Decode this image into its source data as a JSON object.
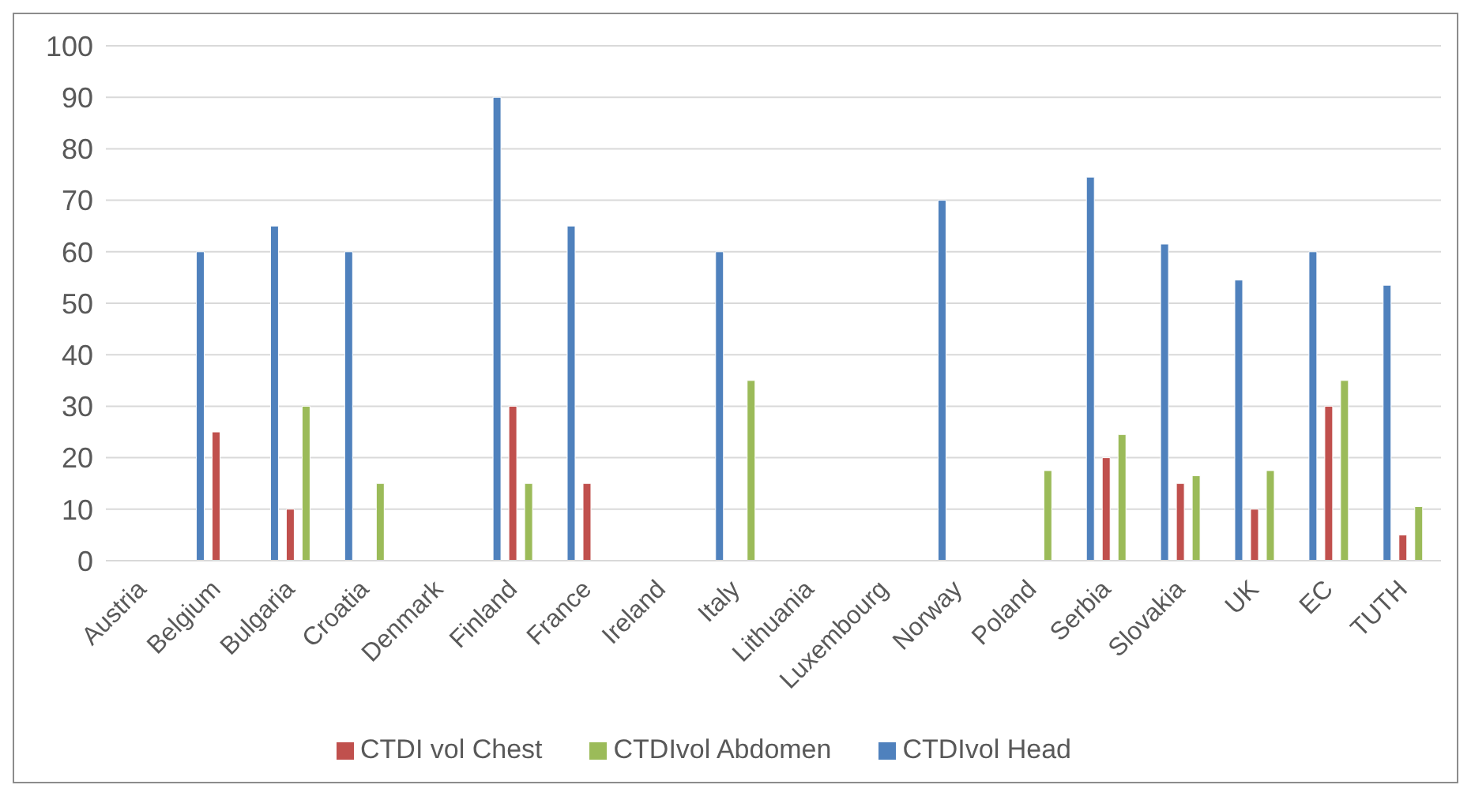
{
  "chart_data": {
    "type": "bar",
    "categories": [
      "Austria",
      "Belgium",
      "Bulgaria",
      "Croatia",
      "Denmark",
      "Finland",
      "France",
      "Ireland",
      "Italy",
      "Lithuania",
      "Luxembourg",
      "Norway",
      "Poland",
      "Serbia",
      "Slovakia",
      "UK",
      "EC",
      "TUTH"
    ],
    "series": [
      {
        "name": "CTDIvol Head",
        "color": "#4f81bd",
        "values": [
          null,
          60,
          65,
          60,
          null,
          90,
          65,
          null,
          60,
          null,
          null,
          70,
          null,
          74.5,
          61.5,
          54.5,
          60,
          53.5
        ]
      },
      {
        "name": "CTDI vol Chest",
        "color": "#c0504d",
        "values": [
          null,
          25,
          10,
          null,
          null,
          30,
          15,
          null,
          null,
          null,
          null,
          null,
          null,
          20,
          15,
          10,
          30,
          5
        ]
      },
      {
        "name": "CTDIvol Abdomen",
        "color": "#9bbb59",
        "values": [
          null,
          null,
          30,
          15,
          null,
          15,
          null,
          null,
          35,
          null,
          null,
          null,
          17.5,
          24.5,
          16.5,
          17.5,
          35,
          10.5
        ]
      }
    ],
    "ylim": [
      0,
      100
    ],
    "yticks": [
      0,
      10,
      20,
      30,
      40,
      50,
      60,
      70,
      80,
      90,
      100
    ],
    "grid": "y",
    "legend": "bottom"
  }
}
